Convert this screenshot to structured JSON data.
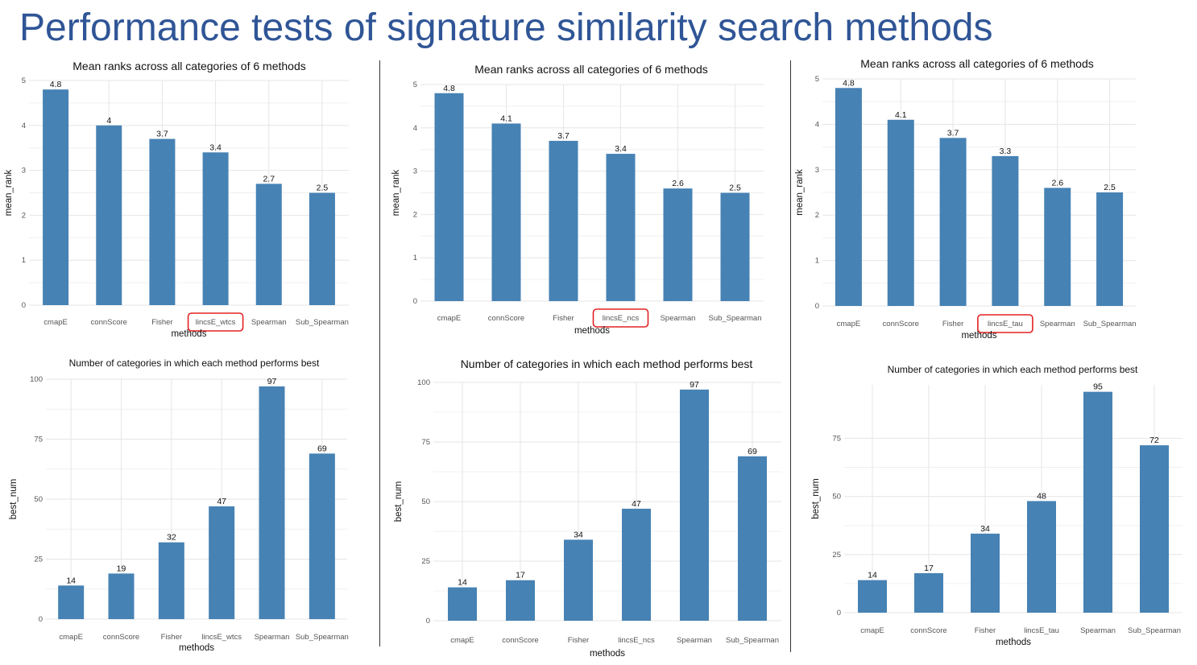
{
  "page": {
    "title": "Performance tests of signature similarity search methods"
  },
  "colors": {
    "bar": "#4682b4",
    "highlight": "#e32222",
    "title": "#2f5596"
  },
  "chart_data": [
    {
      "id": "c1",
      "type": "bar",
      "title": "Mean ranks across all categories of 6 methods",
      "xlabel": "methods",
      "ylabel": "mean_rank",
      "categories": [
        "cmapE",
        "connScore",
        "Fisher",
        "lincsE_wtcs",
        "Spearman",
        "Sub_Spearman"
      ],
      "values": [
        4.8,
        4.0,
        3.7,
        3.4,
        2.7,
        2.5
      ],
      "labels": [
        "4.8",
        "4",
        "3.7",
        "3.4",
        "2.7",
        "2.5"
      ],
      "ylim": [
        0,
        5
      ],
      "yticks": [
        0,
        1,
        2,
        3,
        4,
        5
      ],
      "highlight_index": 3,
      "grid": true
    },
    {
      "id": "c2",
      "type": "bar",
      "title": "Mean ranks across all categories of 6 methods",
      "xlabel": "methods",
      "ylabel": "mean_rank",
      "categories": [
        "cmapE",
        "connScore",
        "Fisher",
        "lincsE_ncs",
        "Spearman",
        "Sub_Spearman"
      ],
      "values": [
        4.8,
        4.1,
        3.7,
        3.4,
        2.6,
        2.5
      ],
      "labels": [
        "4.8",
        "4.1",
        "3.7",
        "3.4",
        "2.6",
        "2.5"
      ],
      "ylim": [
        0,
        5
      ],
      "yticks": [
        0,
        1,
        2,
        3,
        4,
        5
      ],
      "highlight_index": 3,
      "grid": true
    },
    {
      "id": "c3",
      "type": "bar",
      "title": "Mean ranks across all categories of 6 methods",
      "xlabel": "methods",
      "ylabel": "mean_rank",
      "categories": [
        "cmapE",
        "connScore",
        "Fisher",
        "lincsE_tau",
        "Spearman",
        "Sub_Spearman"
      ],
      "values": [
        4.8,
        4.1,
        3.7,
        3.3,
        2.6,
        2.5
      ],
      "labels": [
        "4.8",
        "4.1",
        "3.7",
        "3.3",
        "2.6",
        "2.5"
      ],
      "ylim": [
        0,
        5
      ],
      "yticks": [
        0,
        1,
        2,
        3,
        4,
        5
      ],
      "highlight_index": 3,
      "grid": true
    },
    {
      "id": "c4",
      "type": "bar",
      "title": "Number of categories in which each method performs best",
      "xlabel": "methods",
      "ylabel": "best_num",
      "categories": [
        "cmapE",
        "connScore",
        "Fisher",
        "lincsE_wtcs",
        "Spearman",
        "Sub_Spearman"
      ],
      "values": [
        14,
        19,
        32,
        47,
        97,
        69
      ],
      "labels": [
        "14",
        "19",
        "32",
        "47",
        "97",
        "69"
      ],
      "ylim": [
        0,
        100
      ],
      "yticks": [
        0,
        25,
        50,
        75,
        100
      ],
      "highlight_index": null,
      "grid": true
    },
    {
      "id": "c5",
      "type": "bar",
      "title": "Number of categories in which each method performs best",
      "xlabel": "methods",
      "ylabel": "best_num",
      "categories": [
        "cmapE",
        "connScore",
        "Fisher",
        "lincsE_ncs",
        "Spearman",
        "Sub_Spearman"
      ],
      "values": [
        14,
        17,
        34,
        47,
        97,
        69
      ],
      "labels": [
        "14",
        "17",
        "34",
        "47",
        "97",
        "69"
      ],
      "ylim": [
        0,
        100
      ],
      "yticks": [
        0,
        25,
        50,
        75,
        100
      ],
      "highlight_index": null,
      "grid": true
    },
    {
      "id": "c6",
      "type": "bar",
      "title": "Number of categories in which each method performs best",
      "xlabel": "methods",
      "ylabel": "best_num",
      "categories": [
        "cmapE",
        "connScore",
        "Fisher",
        "lincsE_tau",
        "Spearman",
        "Sub_Spearman"
      ],
      "values": [
        14,
        17,
        34,
        48,
        95,
        72
      ],
      "labels": [
        "14",
        "17",
        "34",
        "48",
        "95",
        "72"
      ],
      "ylim": [
        0,
        98
      ],
      "yticks": [
        0,
        25,
        50,
        75
      ],
      "highlight_index": null,
      "grid": true
    }
  ]
}
